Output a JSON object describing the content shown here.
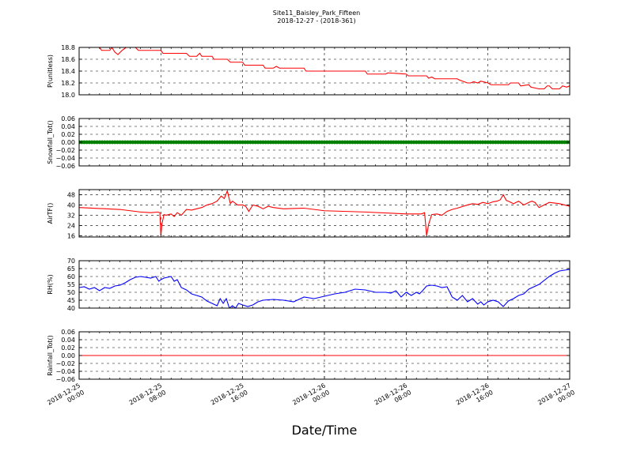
{
  "figure": {
    "title": "Site11_Baisley_Park_Fifteen",
    "subtitle": "2018-12-27 - (2018-361)",
    "xlabel": "Date/Time",
    "x_tick_labels": [
      [
        "2018-12-25",
        "00:00"
      ],
      [
        "2018-12-25",
        "08:00"
      ],
      [
        "2018-12-25",
        "16:00"
      ],
      [
        "2018-12-26",
        "00:00"
      ],
      [
        "2018-12-26",
        "08:00"
      ],
      [
        "2018-12-26",
        "16:00"
      ],
      [
        "2018-12-27",
        "00:00"
      ]
    ]
  },
  "chart_data": [
    {
      "type": "line",
      "ylabel": "P(unitless)",
      "ylim": [
        18.0,
        18.8
      ],
      "yticks": [
        18.0,
        18.2,
        18.4,
        18.6,
        18.8
      ],
      "ytick_labels": [
        "18.0",
        "18.2",
        "18.4",
        "18.6",
        "18.8"
      ],
      "x_unit": "hours since 2018-12-25 00:00",
      "xlim": [
        0,
        48
      ],
      "grid": true,
      "color": "#ff0000",
      "x": [
        2.0,
        2.2,
        3.0,
        3.2,
        3.5,
        3.8,
        4.2,
        4.6,
        5.5,
        5.8,
        6.0,
        8.0,
        8.2,
        10.5,
        10.8,
        11.5,
        11.8,
        12.0,
        13.0,
        13.2,
        14.5,
        14.8,
        16.0,
        16.2,
        18.0,
        18.2,
        19.0,
        19.3,
        19.6,
        20.0,
        22.0,
        22.2,
        24.0,
        24.2,
        28.0,
        28.2,
        30.0,
        30.2,
        32.0,
        32.2,
        34.0,
        34.2,
        34.5,
        34.8,
        35.0,
        37.0,
        37.2,
        38.0,
        38.3,
        38.6,
        39.0,
        39.3,
        40.0,
        40.3,
        42.0,
        42.2,
        43.0,
        43.2,
        44.0,
        44.2,
        45.0,
        45.5,
        45.8,
        46.0,
        46.3,
        47.0,
        47.3,
        47.7,
        48.0
      ],
      "y": [
        18.8,
        18.75,
        18.75,
        18.8,
        18.72,
        18.68,
        18.75,
        18.8,
        18.8,
        18.75,
        18.75,
        18.75,
        18.7,
        18.7,
        18.65,
        18.65,
        18.7,
        18.65,
        18.65,
        18.6,
        18.6,
        18.55,
        18.55,
        18.5,
        18.5,
        18.45,
        18.45,
        18.48,
        18.45,
        18.45,
        18.45,
        18.4,
        18.4,
        18.4,
        18.4,
        18.35,
        18.35,
        18.37,
        18.35,
        18.32,
        18.32,
        18.28,
        18.3,
        18.27,
        18.27,
        18.27,
        18.25,
        18.2,
        18.2,
        18.22,
        18.2,
        18.23,
        18.2,
        18.17,
        18.17,
        18.2,
        18.2,
        18.15,
        18.17,
        18.13,
        18.1,
        18.1,
        18.15,
        18.15,
        18.1,
        18.1,
        18.15,
        18.13,
        18.15
      ]
    },
    {
      "type": "scatter",
      "ylabel": "Snowfall_Tot()",
      "ylim": [
        -0.06,
        0.06
      ],
      "yticks": [
        -0.06,
        -0.04,
        -0.02,
        0.0,
        0.02,
        0.04,
        0.06
      ],
      "ytick_labels": [
        "−0.06",
        "−0.04",
        "−0.02",
        "0.00",
        "0.02",
        "0.04",
        "0.06"
      ],
      "x_unit": "hours since 2018-12-25 00:00",
      "xlim": [
        0,
        48
      ],
      "grid": true,
      "color": "#008000",
      "x_range": [
        0,
        48
      ],
      "constant_value": 0.0
    },
    {
      "type": "line",
      "ylabel": "AirTF()",
      "ylim": [
        15,
        52
      ],
      "yticks": [
        16,
        24,
        32,
        40,
        48
      ],
      "ytick_labels": [
        "16",
        "24",
        "32",
        "40",
        "48"
      ],
      "x_unit": "hours since 2018-12-25 00:00",
      "xlim": [
        0,
        48
      ],
      "grid": true,
      "color": "#ff0000",
      "x": [
        0,
        4,
        5,
        6,
        7,
        7.7,
        7.9,
        8.0,
        8.1,
        8.3,
        8.5,
        9.0,
        9.3,
        9.6,
        10.0,
        10.5,
        11.0,
        11.5,
        12.0,
        12.5,
        13.0,
        13.5,
        13.9,
        14.2,
        14.5,
        14.8,
        15.0,
        15.5,
        16.0,
        16.3,
        16.6,
        17.0,
        17.5,
        18.0,
        18.5,
        19.0,
        20.0,
        22.0,
        24.0,
        28.0,
        32.0,
        33.5,
        33.8,
        34.0,
        34.2,
        34.5,
        35.0,
        35.5,
        36.0,
        36.5,
        37.0,
        38.0,
        38.5,
        39.0,
        39.5,
        40.0,
        40.5,
        40.9,
        41.2,
        41.5,
        41.8,
        42.0,
        42.5,
        43.0,
        43.5,
        44.0,
        44.3,
        44.6,
        45.0,
        46.0,
        47.0,
        48.0
      ],
      "y": [
        38,
        36.5,
        35.5,
        34.5,
        34,
        34.5,
        34,
        16,
        25,
        32.5,
        32,
        33,
        31,
        34,
        32,
        36.5,
        36,
        37,
        38,
        40,
        41,
        43,
        47,
        45,
        51,
        41,
        43,
        40,
        40,
        39,
        35,
        40,
        39,
        37,
        39,
        38,
        37,
        37.5,
        35.5,
        34.5,
        33,
        33,
        34,
        16,
        25,
        32.5,
        33,
        32,
        35,
        36.5,
        37.5,
        40,
        41,
        40.5,
        42,
        41,
        42.5,
        43,
        44,
        48,
        43.5,
        43,
        41,
        43,
        40,
        42,
        43,
        42,
        38,
        42,
        41,
        39
      ]
    },
    {
      "type": "line",
      "ylabel": "RH(%)",
      "ylim": [
        40,
        70
      ],
      "yticks": [
        40,
        45,
        50,
        55,
        60,
        65,
        70
      ],
      "ytick_labels": [
        "40",
        "45",
        "50",
        "55",
        "60",
        "65",
        "70"
      ],
      "x_unit": "hours since 2018-12-25 00:00",
      "xlim": [
        0,
        48
      ],
      "grid": true,
      "color": "#0000ff",
      "x": [
        0,
        0.5,
        1.0,
        1.5,
        2.0,
        2.5,
        3.0,
        3.5,
        4.0,
        4.5,
        5.0,
        5.5,
        6.0,
        6.5,
        7.0,
        7.5,
        7.8,
        8.0,
        8.3,
        9.0,
        9.3,
        9.6,
        10.0,
        10.5,
        11.0,
        11.5,
        12.0,
        12.5,
        13.0,
        13.5,
        13.8,
        14.1,
        14.4,
        14.7,
        15.0,
        15.3,
        15.6,
        16.0,
        16.5,
        17.0,
        17.5,
        18.0,
        19.0,
        20.0,
        21.0,
        22.0,
        23.0,
        24.0,
        25.0,
        26.0,
        27.0,
        28.0,
        29.0,
        30.0,
        30.5,
        31.0,
        31.5,
        32.0,
        32.5,
        33.0,
        33.3,
        33.6,
        34.0,
        34.5,
        35.0,
        35.5,
        36.0,
        36.5,
        37.0,
        37.5,
        38.0,
        38.5,
        39.0,
        39.3,
        39.6,
        40.0,
        40.5,
        41.0,
        41.5,
        42.0,
        42.5,
        43.0,
        43.5,
        44.0,
        45.0,
        46.0,
        46.5,
        47.0,
        48.0
      ],
      "y": [
        53,
        53.5,
        52,
        53,
        51,
        53,
        52.5,
        54,
        54.5,
        56,
        58,
        59.5,
        60,
        59.5,
        59,
        60,
        57,
        58,
        59,
        60,
        57,
        58,
        53,
        51.5,
        49,
        48,
        47,
        44.5,
        43,
        41.5,
        46,
        43,
        46,
        40,
        41.5,
        40,
        43,
        42,
        41,
        42,
        44,
        45,
        45.5,
        45,
        44,
        47,
        46,
        47.5,
        49,
        50,
        52,
        51.5,
        50,
        50,
        49.5,
        51,
        47,
        50,
        48,
        50,
        49,
        51,
        54,
        54.5,
        54,
        53,
        53.5,
        47,
        45,
        48,
        44,
        46,
        42.5,
        44,
        42,
        44,
        45,
        44,
        41,
        44.5,
        46,
        48,
        49,
        52,
        55,
        60,
        62,
        63.5,
        64.5
      ]
    },
    {
      "type": "line",
      "ylabel": "Rainfall_Tot()",
      "ylim": [
        -0.06,
        0.06
      ],
      "yticks": [
        -0.06,
        -0.04,
        -0.02,
        0.0,
        0.02,
        0.04,
        0.06
      ],
      "ytick_labels": [
        "−0.06",
        "−0.04",
        "−0.02",
        "0.00",
        "0.02",
        "0.04",
        "0.06"
      ],
      "x_unit": "hours since 2018-12-25 00:00",
      "xlim": [
        0,
        48
      ],
      "grid": true,
      "color": "#ff0000",
      "x": [
        0,
        48
      ],
      "y": [
        0.0,
        0.0
      ]
    }
  ]
}
